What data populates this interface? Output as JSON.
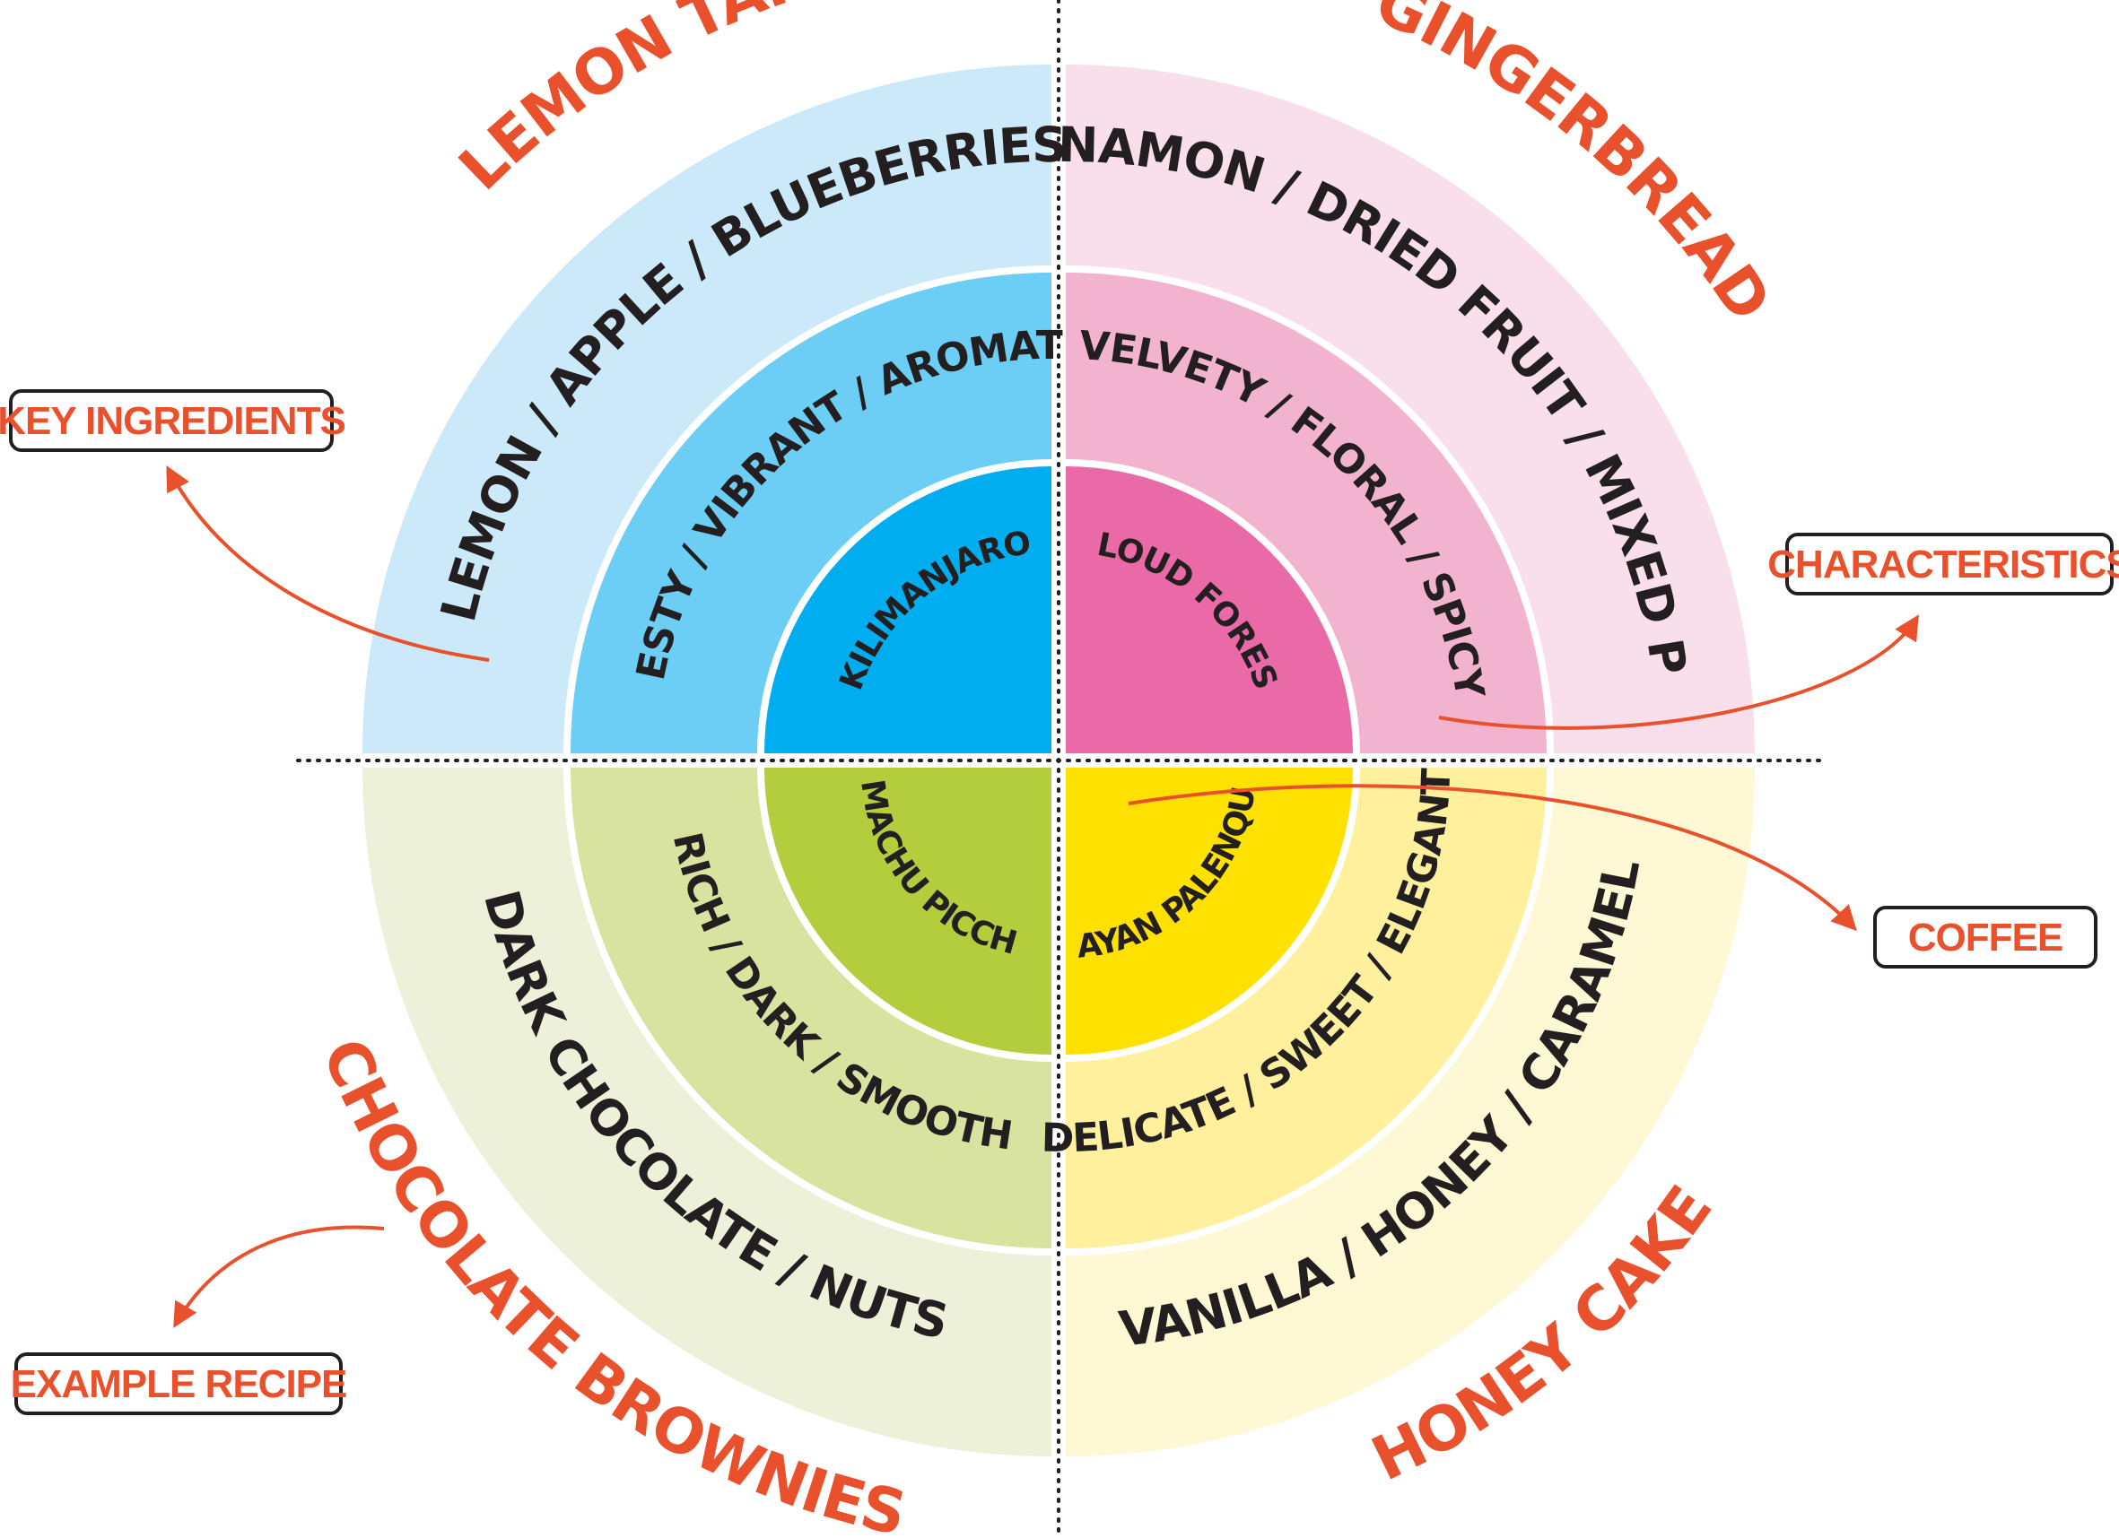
{
  "colors": {
    "accent": "#e8512c",
    "ink": "#231f20",
    "lemon_outer": "#cce9f9",
    "lemon_middle": "#6ccdf5",
    "lemon_inner": "#00aeef",
    "ginger_outer": "#f9dfeb",
    "ginger_middle": "#f2b3cf",
    "ginger_inner": "#ea6aa8",
    "brownie_outer": "#eef1d9",
    "brownie_middle": "#d8e3a0",
    "brownie_inner": "#b3cd3c",
    "honey_outer": "#fef8d5",
    "honey_middle": "#fff09e",
    "honey_inner": "#ffe100"
  },
  "quadrants": {
    "lemon": {
      "recipe": "LEMON TART",
      "ingredients": "LEMON / APPLE / BLUEBERRIES",
      "characteristics": "ZESTY / VIBRANT / AROMATIC",
      "coffee": "KILIMANJARO"
    },
    "ginger": {
      "recipe": "GINGERBREAD",
      "ingredients": "CINNAMON / DRIED FRUIT / MIXED PEEL",
      "characteristics": "VELVETY / FLORAL / SPICY",
      "coffee": "CLOUD FOREST"
    },
    "brownie": {
      "recipe": "CHOCOLATE BROWNIES",
      "ingredients": "DARK CHOCOLATE / NUTS",
      "characteristics": "RICH / DARK / SMOOTH",
      "coffee": "MACHU PICCHU"
    },
    "honey": {
      "recipe": "HONEY CAKE",
      "ingredients": "VANILLA / HONEY / CARAMEL",
      "characteristics": "DELICATE / SWEET / ELEGANT",
      "coffee": "MAYAN PALENQUE"
    }
  },
  "callouts": {
    "key_ingredients": "KEY INGREDIENTS",
    "characteristics": "CHARACTERISTICS",
    "coffee": "COFFEE",
    "example_recipe": "EXAMPLE RECIPE"
  }
}
